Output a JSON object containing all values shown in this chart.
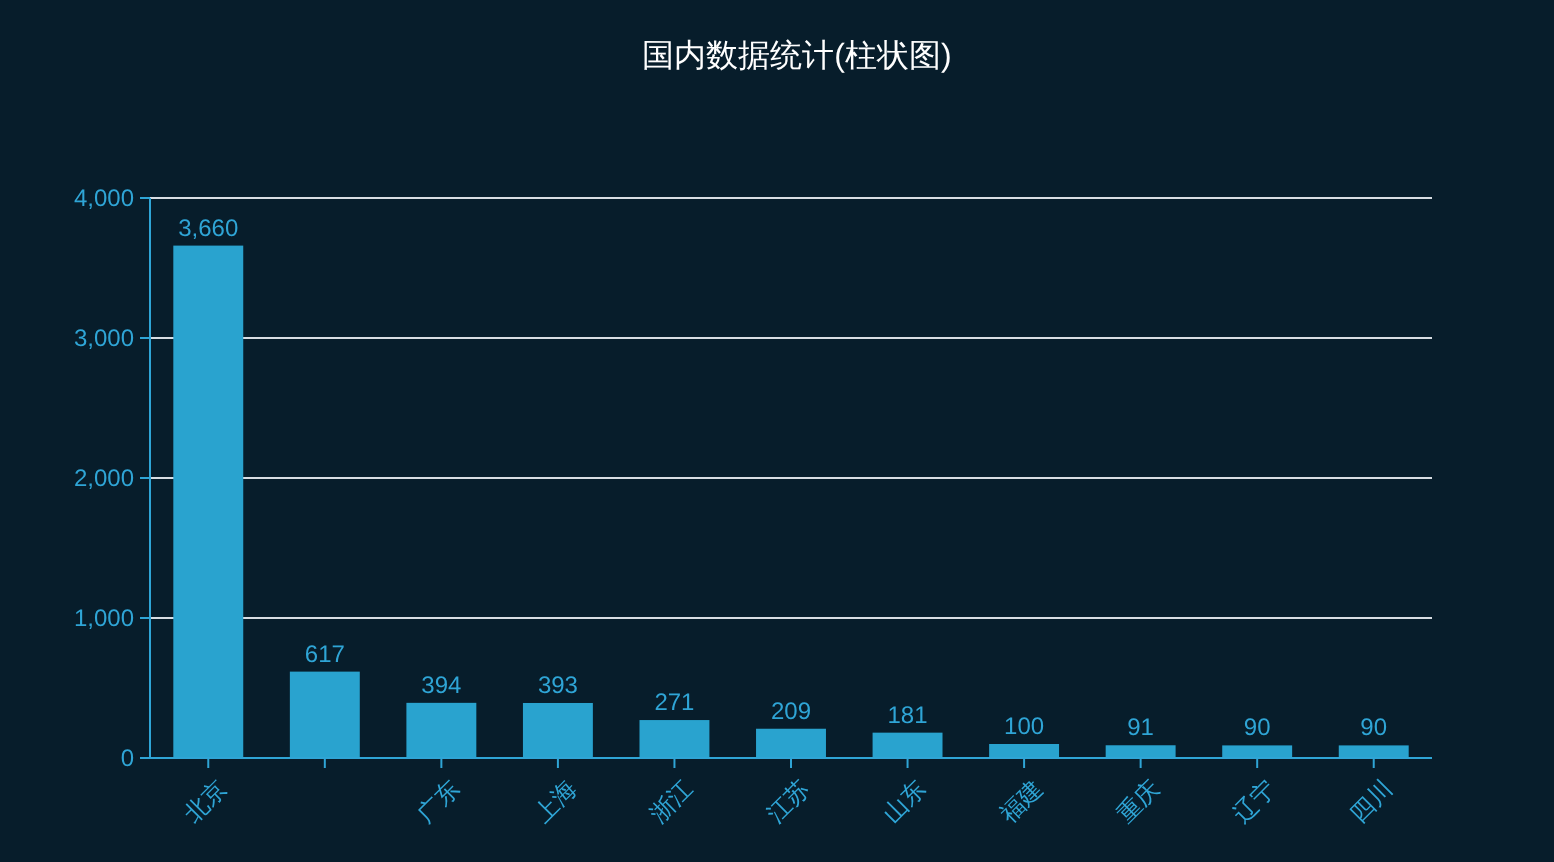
{
  "chart_data": {
    "type": "bar",
    "title": "国内数据统计(柱状图)",
    "categories": [
      "北京",
      null,
      "广东",
      "上海",
      "浙江",
      "江苏",
      "山东",
      "福建",
      "重庆",
      "辽宁",
      "四川"
    ],
    "values": [
      3660,
      617,
      394,
      393,
      271,
      209,
      181,
      100,
      91,
      90,
      90
    ],
    "value_labels": [
      "3,660",
      "617",
      "394",
      "393",
      "271",
      "209",
      "181",
      "100",
      "91",
      "90",
      "90"
    ],
    "color": "#29a3cf",
    "ylim": [
      0,
      4000
    ],
    "yticks": [
      0,
      {
        "value": 1000,
        "label": "1,000"
      },
      {
        "value": 2000,
        "label": "2,000"
      },
      {
        "value": 3000,
        "label": "3,000"
      },
      {
        "value": 4000,
        "label": "4,000"
      }
    ],
    "grid": "y"
  }
}
